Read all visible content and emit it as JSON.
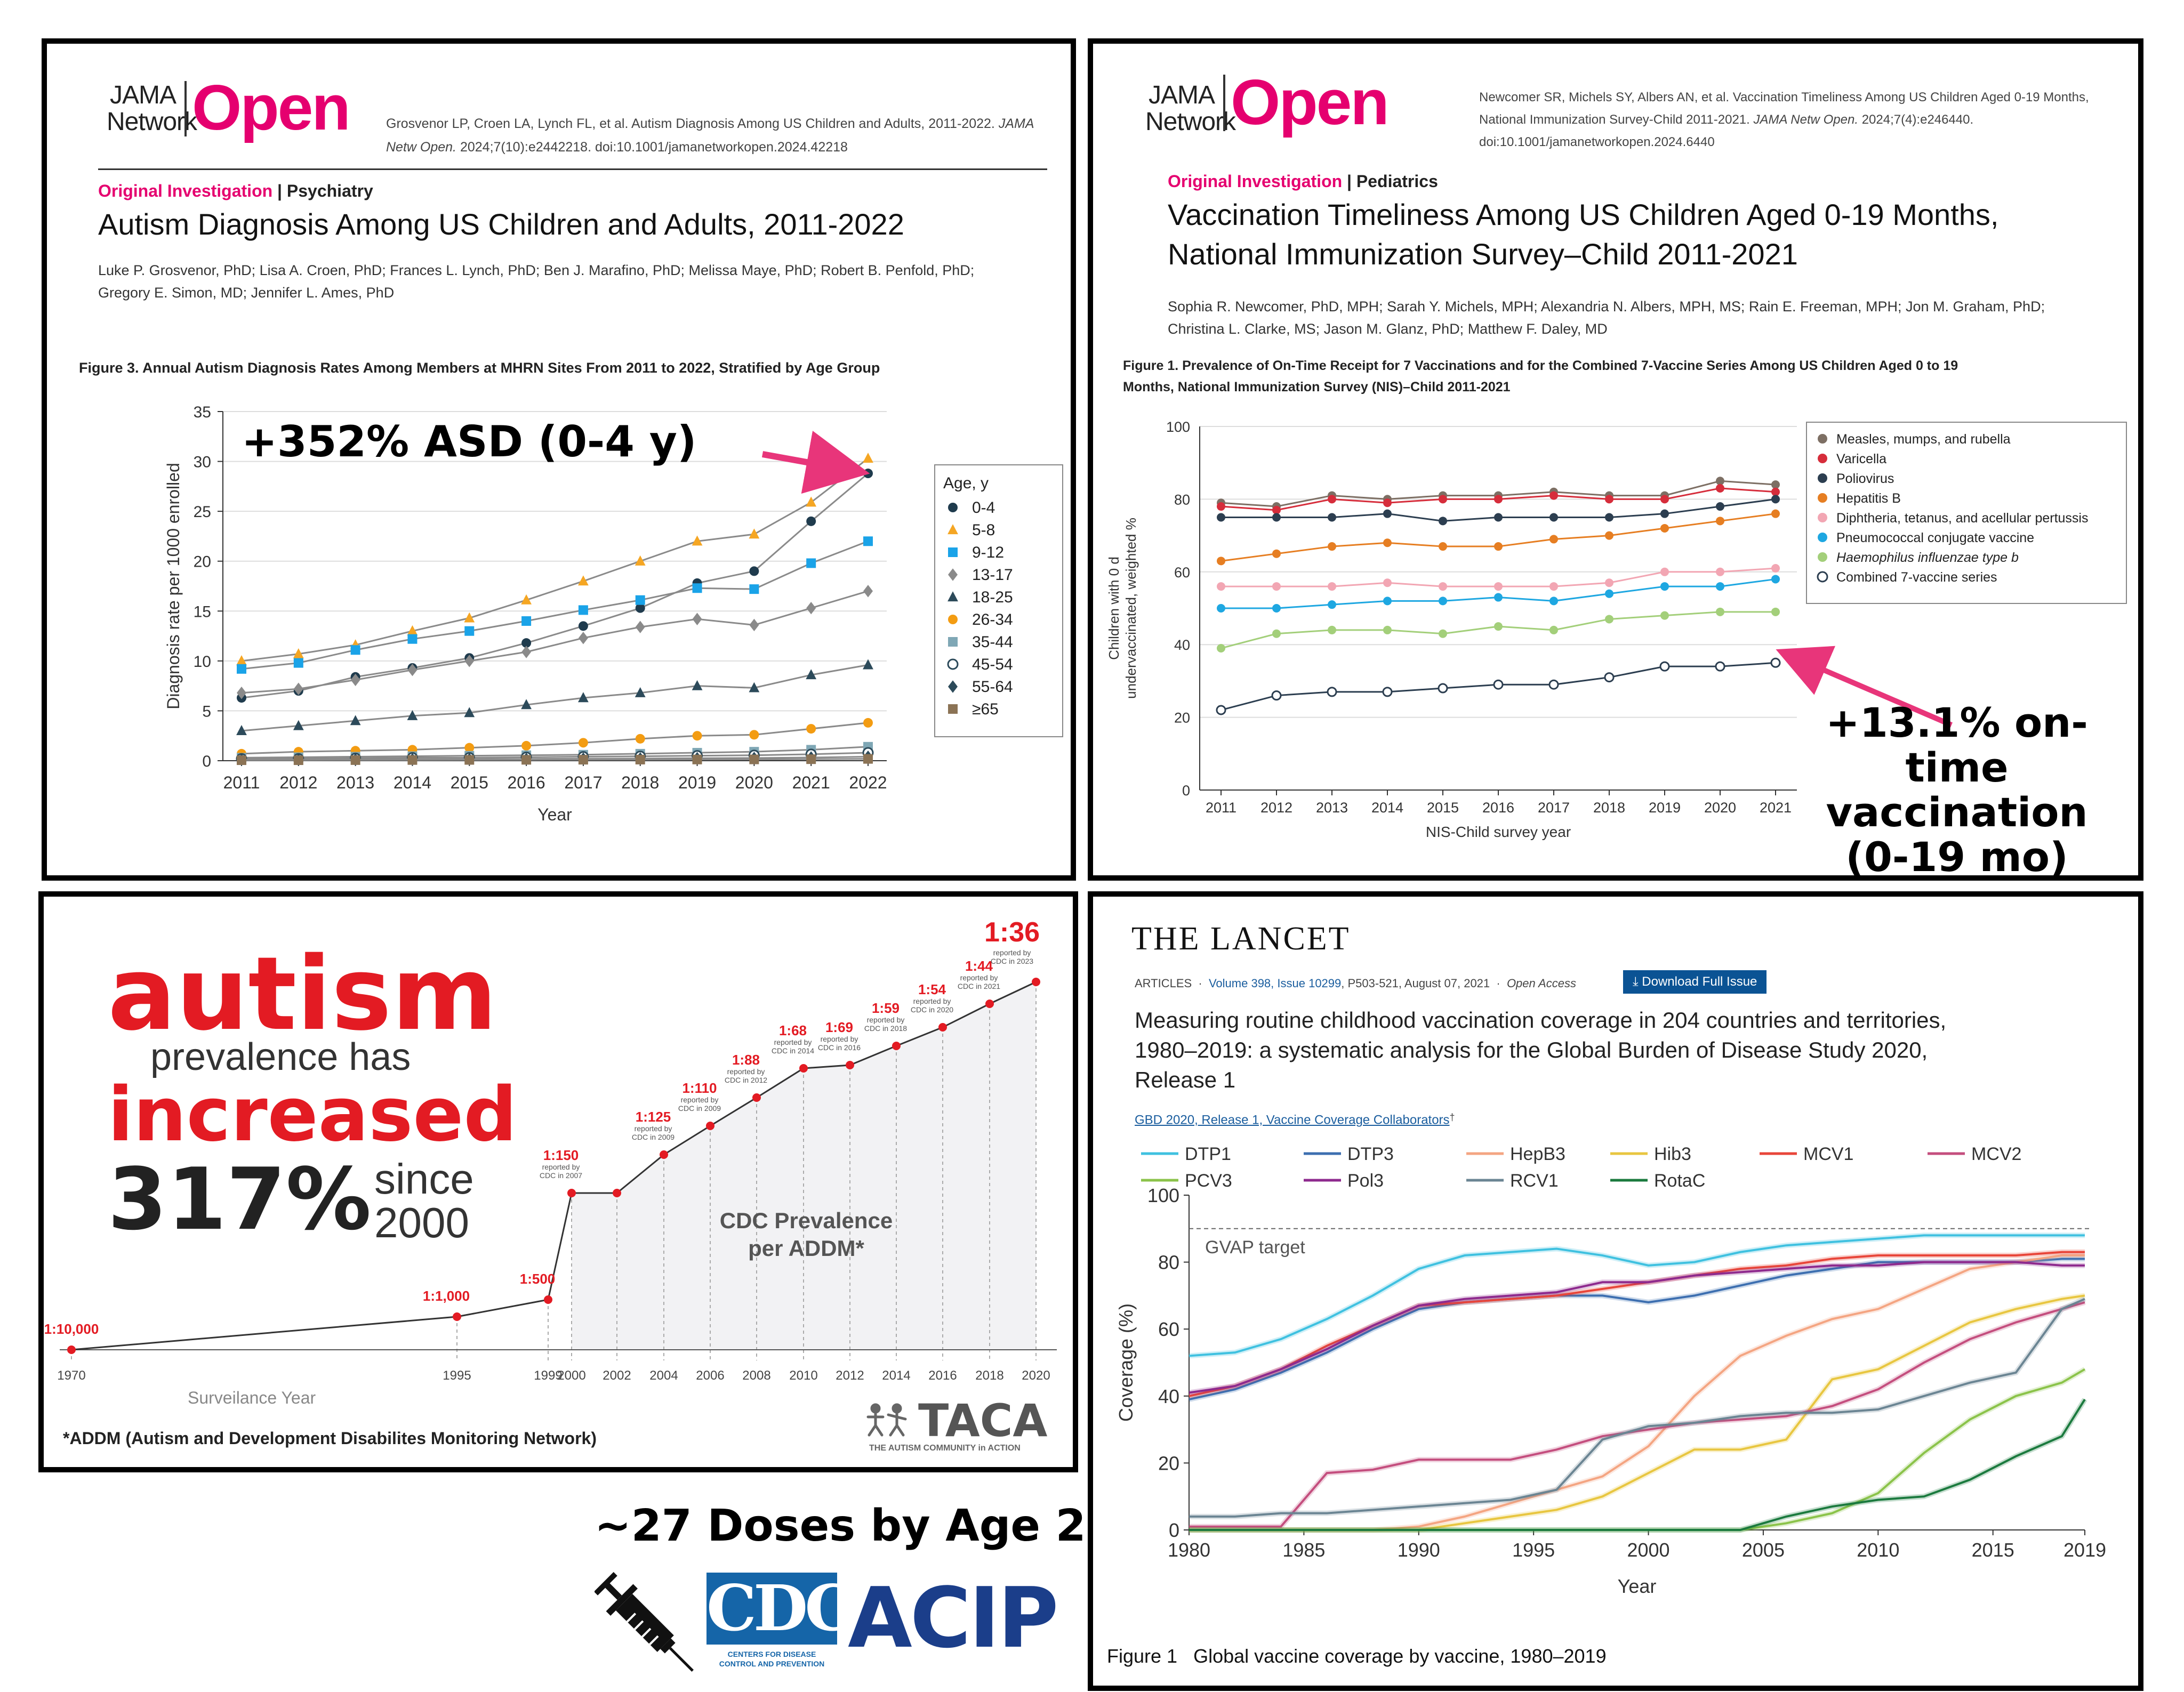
{
  "p1": {
    "logo": {
      "line1": "JAMA",
      "line2": "Network",
      "open": "Open"
    },
    "citation": "Grosvenor LP, Croen LA, Lynch FL, et al. Autism Diagnosis Among US Children and Adults, 2011-2022. JAMA Netw Open. 2024;7(10):e2442218. doi:10.1001/jamanetworkopen.2024.42218",
    "citation_l1": "Grosvenor LP, Croen LA, Lynch FL, et al. Autism Diagnosis Among US Children and Adults, 2011-2022.",
    "citation_l1b": "JAMA",
    "citation_l2a": "Netw Open.",
    "citation_l2b": "2024;7(10):e2442218. doi:10.1001/jamanetworkopen.2024.42218",
    "section": "Original Investigation",
    "section2": "Psychiatry",
    "title": "Autism Diagnosis Among US Children and Adults, 2011-2022",
    "authors_l1": "Luke P. Grosvenor, PhD; Lisa A. Croen, PhD; Frances L. Lynch, PhD; Ben J. Marafino, PhD; Melissa Maye, PhD; Robert B. Penfold, PhD;",
    "authors_l2": "Gregory E. Simon, MD; Jennifer L. Ames, PhD",
    "figure_caption": "Figure 3.  Annual Autism Diagnosis Rates Among Members at MHRN Sites From 2011 to 2022, Stratified by Age Group",
    "annotation": "+352% ASD (0-4 y)"
  },
  "p2": {
    "logo": {
      "line1": "JAMA",
      "line2": "Network",
      "open": "Open"
    },
    "citation_l1": "Newcomer SR, Michels SY, Albers AN, et al. Vaccination Timeliness Among US Children Aged 0-19 Months,",
    "citation_l2a": "National Immunization Survey-Child 2011-2021.",
    "citation_l2b": "JAMA Netw Open.",
    "citation_l2c": "2024;7(4):e246440.",
    "citation_l3": "doi:10.1001/jamanetworkopen.2024.6440",
    "section": "Original Investigation",
    "section2": "Pediatrics",
    "title_l1": "Vaccination Timeliness Among US Children Aged 0-19 Months,",
    "title_l2": "National Immunization Survey–Child 2011-2021",
    "authors_l1": "Sophia R. Newcomer, PhD, MPH; Sarah Y. Michels, MPH; Alexandria N. Albers, MPH, MS; Rain E. Freeman, MPH; Jon M. Graham, PhD;",
    "authors_l2": "Christina L. Clarke, MS; Jason M. Glanz, PhD; Matthew F. Daley, MD",
    "figure_caption_l1": "Figure 1.  Prevalence of On-Time Receipt for 7 Vaccinations and for the Combined 7-Vaccine Series Among US Children Aged 0 to 19",
    "figure_caption_l2": "Months, National Immunization Survey (NIS)–Child 2011-2021",
    "annotation_l1": "+13.1% on-time",
    "annotation_l2": "vaccination",
    "annotation_l3": "(0-19 mo)"
  },
  "p3": {
    "word1": "autism",
    "word2": "prevalence has",
    "word3": "increased",
    "word4": "317%",
    "word5": "since",
    "word6": "2000",
    "center_label_l1": "CDC Prevalence",
    "center_label_l2": "per ADDM*",
    "xlabel": "Surveilance Year",
    "footnote": "*ADDM (Autism and Development Disabilites Monitoring Network)",
    "taca": "TACA",
    "taca_sub": "THE AUTISM COMMUNITY in ACTION"
  },
  "bottom": {
    "doses": "~27 Doses by Age 2",
    "cdc": "CDC",
    "cdc_sub_l1": "CENTERS FOR DISEASE",
    "cdc_sub_l2": "CONTROL AND PREVENTION",
    "acip": "ACIP"
  },
  "p4": {
    "journal": "THE LANCET",
    "meta_articles": "ARTICLES",
    "meta_volume": "Volume 398, Issue 10299",
    "meta_pages": ", P503-521, August 07, 2021",
    "meta_access": "Open Access",
    "download": "Download Full Issue",
    "title_l1": "Measuring routine childhood vaccination coverage in 204 countries and territories,",
    "title_l2": "1980–2019: a systematic analysis for the Global Burden of Disease Study 2020,",
    "title_l3": "Release 1",
    "collab": "GBD 2020, Release 1, Vaccine Coverage Collaborators",
    "collab_mark": "†",
    "figure_caption_a": "Figure 1",
    "figure_caption_b": "Global vaccine coverage by vaccine, 1980–2019"
  },
  "colors": {
    "jama_pink": "#e5006f",
    "annotation_arrow": "#e8357a",
    "autism_red": "#e31b23",
    "lancet_blue": "#0b5394"
  },
  "chart_data": [
    {
      "id": "autism_by_age",
      "type": "line",
      "title": "",
      "xlabel": "Year",
      "ylabel": "Diagnosis rate per 1000 enrolled",
      "x": [
        2011,
        2012,
        2013,
        2014,
        2015,
        2016,
        2017,
        2018,
        2019,
        2020,
        2021,
        2022
      ],
      "ylim": [
        0,
        35
      ],
      "yticks": [
        0,
        5,
        10,
        15,
        20,
        25,
        30,
        35
      ],
      "legend_title": "Age, y",
      "legend_position": "right",
      "grid": "horizontal",
      "series": [
        {
          "name": "0-4",
          "color": "#1f3b4d",
          "marker": "circle",
          "values": [
            6.3,
            7.0,
            8.4,
            9.3,
            10.3,
            11.8,
            13.5,
            15.3,
            17.8,
            19.0,
            24.0,
            28.8
          ]
        },
        {
          "name": "5-8",
          "color": "#f5a623",
          "marker": "triangle",
          "values": [
            10.0,
            10.7,
            11.6,
            13.0,
            14.3,
            16.1,
            18.0,
            20.0,
            22.0,
            22.7,
            25.9,
            30.3
          ]
        },
        {
          "name": "9-12",
          "color": "#1aa3e8",
          "marker": "square",
          "values": [
            9.2,
            9.8,
            11.1,
            12.2,
            13.0,
            14.0,
            15.1,
            16.1,
            17.3,
            17.2,
            19.8,
            22.0
          ]
        },
        {
          "name": "13-17",
          "color": "#8a8a8a",
          "marker": "diamond",
          "values": [
            6.8,
            7.2,
            8.1,
            9.1,
            10.0,
            10.9,
            12.3,
            13.4,
            14.2,
            13.6,
            15.3,
            17.0
          ]
        },
        {
          "name": "18-25",
          "color": "#2c4a5a",
          "marker": "triangle",
          "values": [
            3.0,
            3.5,
            4.0,
            4.5,
            4.8,
            5.6,
            6.3,
            6.8,
            7.5,
            7.3,
            8.6,
            9.6
          ]
        },
        {
          "name": "26-34",
          "color": "#f39c12",
          "marker": "circle",
          "values": [
            0.7,
            0.9,
            1.0,
            1.1,
            1.3,
            1.5,
            1.8,
            2.2,
            2.5,
            2.6,
            3.2,
            3.8
          ]
        },
        {
          "name": "35-44",
          "color": "#7fa7b5",
          "marker": "square",
          "values": [
            0.3,
            0.35,
            0.4,
            0.45,
            0.5,
            0.55,
            0.6,
            0.7,
            0.8,
            0.9,
            1.1,
            1.4
          ]
        },
        {
          "name": "45-54",
          "color": "#2c4a5a",
          "marker": "open-circle",
          "values": [
            0.2,
            0.2,
            0.25,
            0.3,
            0.3,
            0.35,
            0.4,
            0.45,
            0.5,
            0.55,
            0.65,
            0.8
          ]
        },
        {
          "name": "55-64",
          "color": "#2c4a5a",
          "marker": "diamond",
          "values": [
            0.1,
            0.1,
            0.12,
            0.14,
            0.15,
            0.17,
            0.2,
            0.22,
            0.25,
            0.27,
            0.32,
            0.4
          ]
        },
        {
          "name": "≥65",
          "color": "#8b7355",
          "marker": "square",
          "values": [
            0.05,
            0.05,
            0.06,
            0.07,
            0.08,
            0.09,
            0.1,
            0.11,
            0.12,
            0.13,
            0.15,
            0.18
          ]
        }
      ]
    },
    {
      "id": "ontime_vaccination",
      "type": "line",
      "title": "",
      "xlabel": "NIS-Child survey year",
      "ylabel": "Children with 0 d undervaccinated, weighted %",
      "ylabel_l1": "Children with 0 d",
      "ylabel_l2": "undervaccinated, weighted %",
      "x": [
        2011,
        2012,
        2013,
        2014,
        2015,
        2016,
        2017,
        2018,
        2019,
        2020,
        2021
      ],
      "ylim": [
        0,
        100
      ],
      "yticks": [
        0,
        20,
        40,
        60,
        80,
        100
      ],
      "legend_position": "right",
      "grid": "horizontal",
      "series": [
        {
          "name": "Measles, mumps, and rubella",
          "color": "#7d6f64",
          "marker": "circle",
          "values": [
            79,
            78,
            81,
            80,
            81,
            81,
            82,
            81,
            81,
            85,
            84
          ]
        },
        {
          "name": "Varicella",
          "color": "#d62d3b",
          "marker": "circle",
          "values": [
            78,
            77,
            80,
            79,
            80,
            80,
            81,
            80,
            80,
            83,
            82
          ]
        },
        {
          "name": "Poliovirus",
          "color": "#2c3e50",
          "marker": "circle",
          "values": [
            75,
            75,
            75,
            76,
            74,
            75,
            75,
            75,
            76,
            78,
            80
          ]
        },
        {
          "name": "Hepatitis B",
          "color": "#e67e22",
          "marker": "circle",
          "values": [
            63,
            65,
            67,
            68,
            67,
            67,
            69,
            70,
            72,
            74,
            76
          ]
        },
        {
          "name": "Diphtheria, tetanus, and acellular pertussis",
          "color": "#f2a6b3",
          "marker": "circle",
          "values": [
            56,
            56,
            56,
            57,
            56,
            56,
            56,
            57,
            60,
            60,
            61
          ]
        },
        {
          "name": "Pneumococcal conjugate vaccine",
          "color": "#1ea7e1",
          "marker": "circle",
          "values": [
            50,
            50,
            51,
            52,
            52,
            53,
            52,
            54,
            56,
            56,
            58
          ]
        },
        {
          "name": "Haemophilus influenzae type b",
          "color": "#a3cf7a",
          "marker": "circle",
          "values": [
            39,
            43,
            44,
            44,
            43,
            45,
            44,
            47,
            48,
            49,
            49
          ]
        },
        {
          "name": "Combined 7-vaccine series",
          "color": "#2c3e50",
          "marker": "open-circle",
          "values": [
            22,
            26,
            27,
            27,
            28,
            29,
            29,
            31,
            34,
            34,
            35
          ]
        }
      ]
    },
    {
      "id": "cdc_prevalence",
      "type": "line",
      "xlabel": "Surveilance Year",
      "x_ticks": [
        "1970",
        "1995",
        "1999",
        "2000",
        "2002",
        "2004",
        "2006",
        "2008",
        "2010",
        "2012",
        "2014",
        "2016",
        "2018",
        "2020"
      ],
      "points": [
        {
          "year": 1970,
          "label": "1:10,000",
          "note": ""
        },
        {
          "year": 1995,
          "label": "1:1,000",
          "note": ""
        },
        {
          "year": 1999,
          "label": "1:500",
          "note": ""
        },
        {
          "year": 2000,
          "label": "1:150",
          "note": "reported by CDC in 2007"
        },
        {
          "year": 2002,
          "label": "",
          "note": ""
        },
        {
          "year": 2004,
          "label": "1:125",
          "note": "reported by CDC in 2009"
        },
        {
          "year": 2006,
          "label": "1:110",
          "note": "reported by CDC in 2009"
        },
        {
          "year": 2008,
          "label": "1:88",
          "note": "reported by CDC in 2012"
        },
        {
          "year": 2010,
          "label": "1:68",
          "note": "reported by CDC in 2014"
        },
        {
          "year": 2012,
          "label": "1:69",
          "note": "reported by CDC in 2016"
        },
        {
          "year": 2014,
          "label": "1:59",
          "note": "reported by CDC in 2018"
        },
        {
          "year": 2016,
          "label": "1:54",
          "note": "reported by CDC in 2020"
        },
        {
          "year": 2018,
          "label": "1:44",
          "note": "reported by CDC in 2021"
        },
        {
          "year": 2020,
          "label": "1:36",
          "note": "reported by CDC in 2023"
        }
      ]
    },
    {
      "id": "lancet_global_coverage",
      "type": "line",
      "title": "",
      "xlabel": "Year",
      "ylabel": "Coverage (%)",
      "x": [
        1980,
        1982,
        1984,
        1986,
        1988,
        1990,
        1992,
        1994,
        1996,
        1998,
        2000,
        2002,
        2004,
        2006,
        2008,
        2010,
        2012,
        2014,
        2016,
        2018,
        2019
      ],
      "xticks": [
        1980,
        1985,
        1990,
        1995,
        2000,
        2005,
        2010,
        2015,
        2019
      ],
      "ylim": [
        0,
        100
      ],
      "yticks": [
        0,
        20,
        40,
        60,
        80,
        100
      ],
      "reference_line": {
        "value": 90,
        "label": "GVAP target"
      },
      "legend_position": "top",
      "series": [
        {
          "name": "DTP1",
          "color": "#3fc1e0",
          "values": [
            52,
            53,
            57,
            63,
            70,
            78,
            82,
            83,
            84,
            82,
            79,
            80,
            83,
            85,
            86,
            87,
            88,
            88,
            88,
            88,
            88
          ]
        },
        {
          "name": "DTP3",
          "color": "#3d6fb0",
          "values": [
            39,
            42,
            47,
            53,
            60,
            66,
            68,
            69,
            70,
            70,
            68,
            70,
            73,
            76,
            78,
            80,
            80,
            80,
            80,
            81,
            81
          ]
        },
        {
          "name": "HepB3",
          "color": "#f4a582",
          "values": [
            0,
            0,
            0,
            0,
            0,
            1,
            4,
            8,
            12,
            16,
            25,
            40,
            52,
            58,
            63,
            66,
            72,
            78,
            80,
            82,
            82
          ]
        },
        {
          "name": "Hib3",
          "color": "#e8c640",
          "values": [
            0,
            0,
            0,
            0,
            0,
            0,
            2,
            4,
            6,
            10,
            17,
            24,
            24,
            27,
            45,
            48,
            55,
            62,
            66,
            69,
            70
          ]
        },
        {
          "name": "MCV1",
          "color": "#e8463a",
          "values": [
            40,
            43,
            48,
            55,
            61,
            67,
            68,
            69,
            70,
            72,
            74,
            76,
            78,
            79,
            81,
            82,
            82,
            82,
            82,
            83,
            83
          ]
        },
        {
          "name": "MCV2",
          "color": "#c44e7e",
          "values": [
            1,
            1,
            1,
            17,
            18,
            21,
            21,
            21,
            24,
            28,
            30,
            32,
            33,
            34,
            37,
            42,
            50,
            57,
            62,
            66,
            68
          ]
        },
        {
          "name": "PCV3",
          "color": "#8bc34a",
          "values": [
            0,
            0,
            0,
            0,
            0,
            0,
            0,
            0,
            0,
            0,
            0,
            0,
            0,
            2,
            5,
            11,
            23,
            33,
            40,
            44,
            48
          ]
        },
        {
          "name": "Pol3",
          "color": "#8e2a8e",
          "values": [
            41,
            43,
            48,
            54,
            61,
            67,
            69,
            70,
            71,
            74,
            74,
            76,
            77,
            78,
            79,
            79,
            80,
            80,
            80,
            79,
            79
          ]
        },
        {
          "name": "RCV1",
          "color": "#6b8593",
          "values": [
            4,
            4,
            5,
            5,
            6,
            7,
            8,
            9,
            12,
            27,
            31,
            32,
            34,
            35,
            35,
            36,
            40,
            44,
            47,
            66,
            69
          ]
        },
        {
          "name": "RotaC",
          "color": "#1b7a3e",
          "values": [
            0,
            0,
            0,
            0,
            0,
            0,
            0,
            0,
            0,
            0,
            0,
            0,
            0,
            4,
            7,
            9,
            10,
            15,
            22,
            28,
            39
          ]
        }
      ]
    }
  ]
}
